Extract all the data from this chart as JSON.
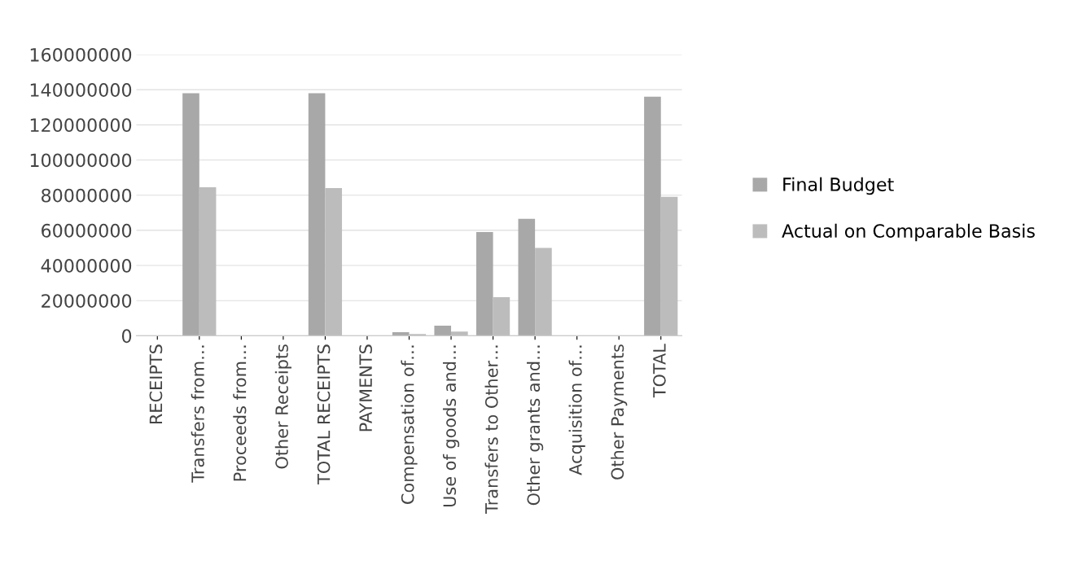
{
  "chart_data": {
    "type": "bar",
    "categories": [
      "RECEIPTS",
      "Transfers from…",
      "Proceeds from…",
      "Other Receipts",
      "TOTAL RECEIPTS",
      "PAYMENTS",
      "Compensation of…",
      "Use of goods and…",
      "Transfers to Other…",
      "Other grants and…",
      "Acquisition of…",
      "Other Payments",
      "TOTAL"
    ],
    "series": [
      {
        "name": "Final Budget",
        "color": "#a8a8a8",
        "values": [
          0,
          138000000,
          0,
          0,
          138000000,
          0,
          2000000,
          5700000,
          59000000,
          66500000,
          0,
          0,
          136000000
        ]
      },
      {
        "name": "Actual on Comparable Basis",
        "color": "#bcbcbc",
        "values": [
          0,
          84500000,
          0,
          0,
          84000000,
          0,
          1000000,
          2400000,
          22000000,
          50000000,
          0,
          0,
          79000000
        ]
      }
    ],
    "ylim": [
      0,
      160000000
    ],
    "yticks": [
      0,
      20000000,
      40000000,
      60000000,
      80000000,
      100000000,
      120000000,
      140000000,
      160000000
    ],
    "grid": "y",
    "legend": "right"
  }
}
